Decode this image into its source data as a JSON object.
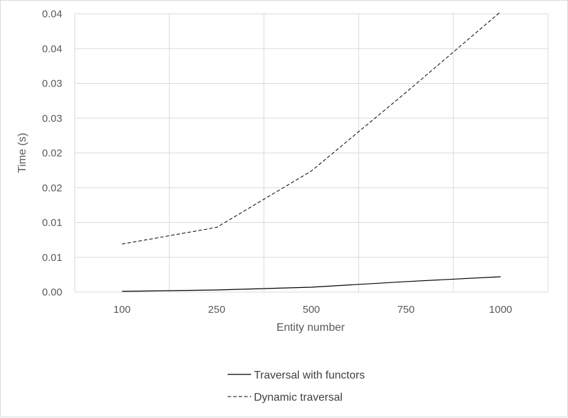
{
  "chart_data": {
    "type": "line",
    "xlabel": "Entity number",
    "ylabel": "Time (s)",
    "categories": [
      "100",
      "250",
      "500",
      "750",
      "1000"
    ],
    "y_tick_labels": [
      "0.00",
      "0.01",
      "0.01",
      "0.02",
      "0.02",
      "0.03",
      "0.03",
      "0.04",
      "0.04"
    ],
    "ylim": [
      0,
      0.04
    ],
    "grid": true,
    "legend_position": "bottom",
    "series": [
      {
        "name": "Traversal with functors",
        "style": "solid",
        "color": "#000000",
        "values": [
          0.0001,
          0.0003,
          0.0007,
          0.0015,
          0.0022
        ]
      },
      {
        "name": "Dynamic traversal",
        "style": "dashed",
        "color": "#000000",
        "values": [
          0.0069,
          0.0093,
          0.0174,
          0.0287,
          0.0403
        ]
      }
    ],
    "colors": {
      "grid": "#d9d9d9",
      "text": "#595959"
    }
  }
}
